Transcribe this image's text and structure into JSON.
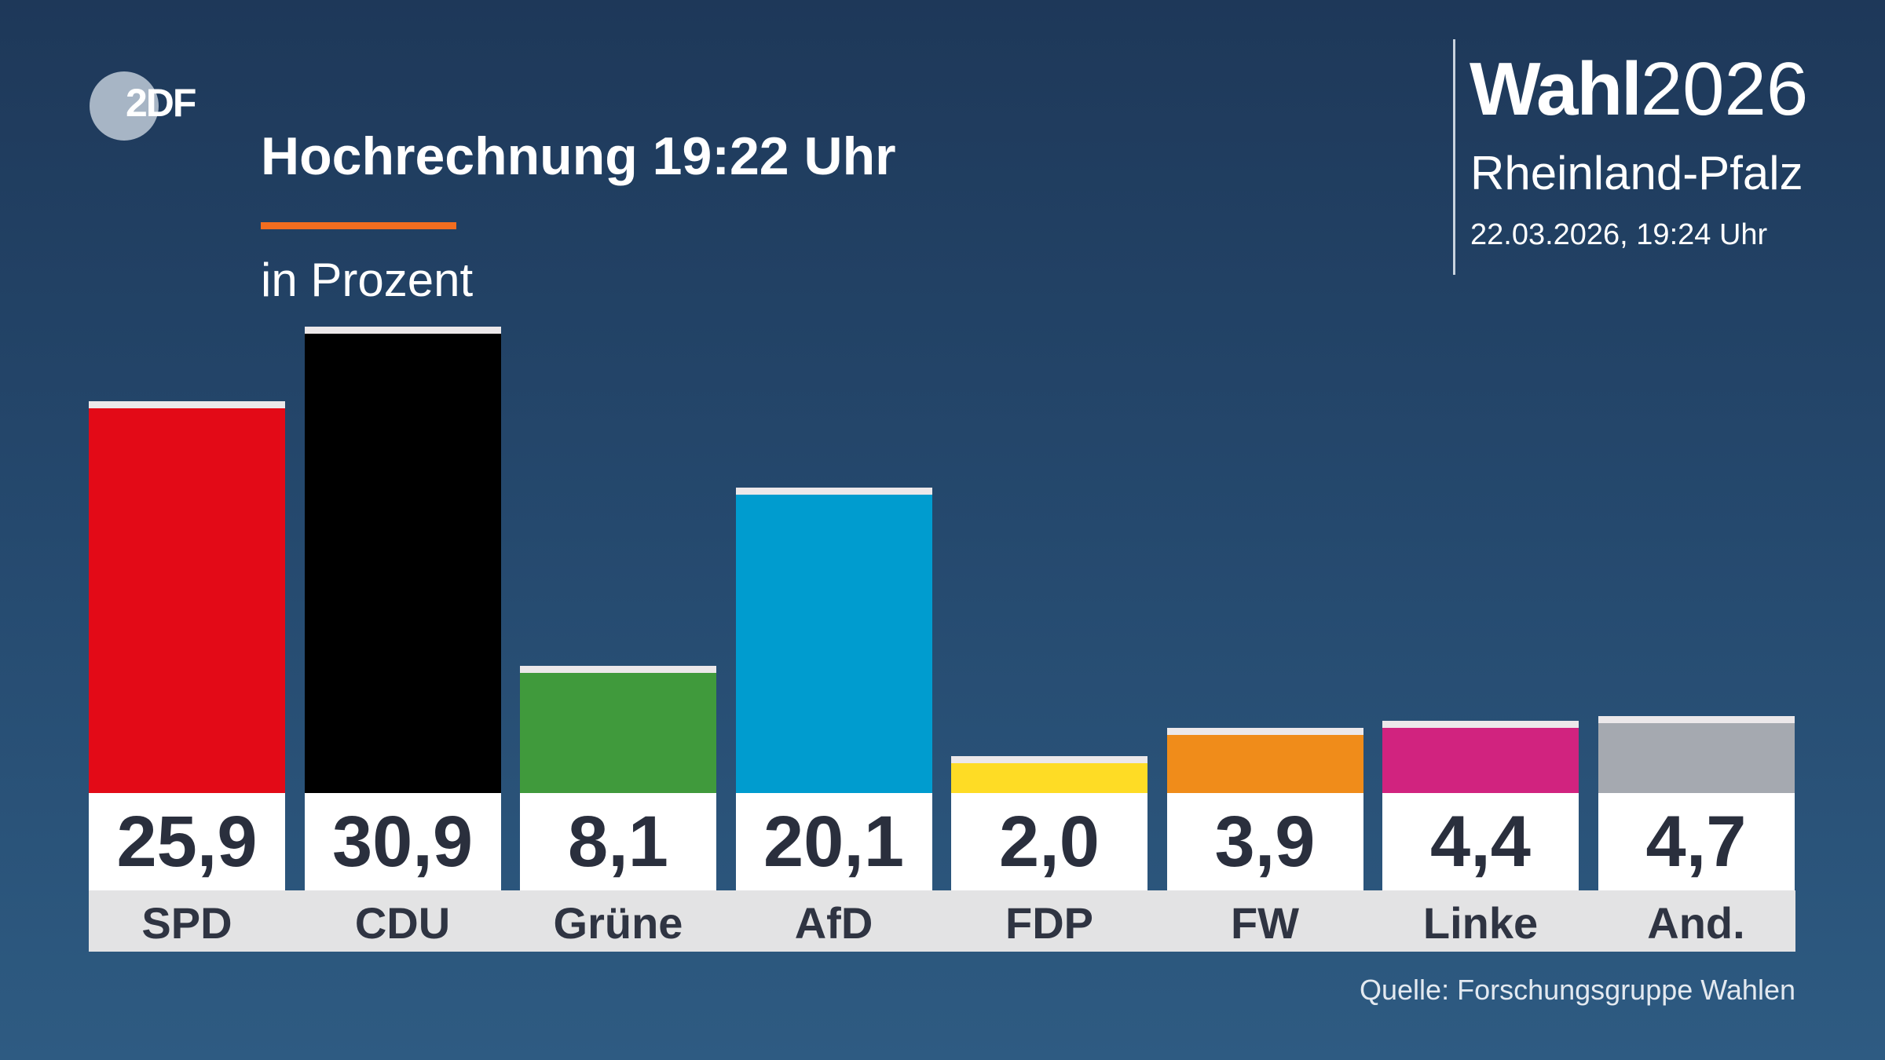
{
  "logo": {
    "text": "2DF",
    "brand": "ZDF",
    "color": "#a7b5c5"
  },
  "header": {
    "title": "Hochrechnung 19:22 Uhr",
    "subtitle": "in Prozent",
    "accent": "#f26d1f"
  },
  "branding": {
    "wahl": "Wahl",
    "year": "2026",
    "region": "Rheinland-Pfalz",
    "timestamp": "22.03.2026, 19:24 Uhr"
  },
  "source": "Quelle: Forschungsgruppe Wahlen",
  "chart_data": {
    "type": "bar",
    "title": "Hochrechnung 19:22 Uhr",
    "ylabel": "in Prozent",
    "categories": [
      "SPD",
      "CDU",
      "Grüne",
      "AfD",
      "FDP",
      "FW",
      "Linke",
      "And."
    ],
    "values": [
      25.9,
      30.9,
      8.1,
      20.1,
      2.0,
      3.9,
      4.4,
      4.7
    ],
    "value_labels": [
      "25,9",
      "30,9",
      "8,1",
      "20,1",
      "2,0",
      "3,9",
      "4,4",
      "4,7"
    ],
    "colors": [
      "#e30a17",
      "#000000",
      "#409a3c",
      "#009ccf",
      "#fedc25",
      "#f08c1a",
      "#d1237f",
      "#a5a9b0"
    ],
    "grid": false
  }
}
